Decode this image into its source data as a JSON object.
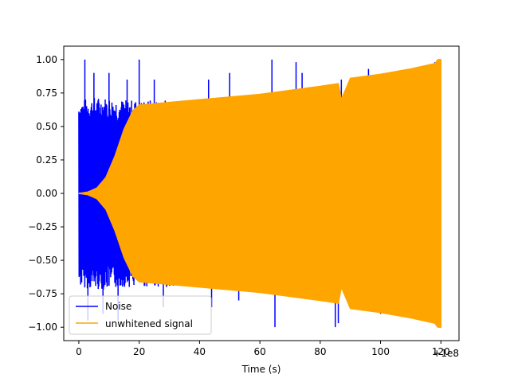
{
  "chart_data": {
    "type": "line",
    "title": "",
    "xlabel": "Time (s)",
    "ylabel": "",
    "x_offset_label": "+1e8",
    "xlim": [
      -5,
      126
    ],
    "ylim": [
      -1.1,
      1.1
    ],
    "x_ticks": [
      0,
      20,
      40,
      60,
      80,
      100,
      120
    ],
    "x_tick_labels": [
      "0",
      "20",
      "40",
      "60",
      "80",
      "100",
      "120"
    ],
    "y_ticks": [
      -1.0,
      -0.75,
      -0.5,
      -0.25,
      0.0,
      0.25,
      0.5,
      0.75,
      1.0
    ],
    "y_tick_labels": [
      "−1.00",
      "−0.75",
      "−0.50",
      "−0.25",
      "0.00",
      "0.25",
      "0.50",
      "0.75",
      "1.00"
    ],
    "grid": false,
    "legend_position": "lower-left",
    "series": [
      {
        "name": "Noise",
        "color": "#0000ff",
        "envelope_x": [
          0,
          5,
          10,
          15,
          20,
          30,
          40,
          60,
          80,
          100,
          120
        ],
        "envelope_upper": [
          0.7,
          0.72,
          0.72,
          0.7,
          0.7,
          0.7,
          0.7,
          0.72,
          0.74,
          0.77,
          0.8
        ],
        "spikes": [
          [
            2,
            1.0
          ],
          [
            3,
            -0.95
          ],
          [
            5,
            0.9
          ],
          [
            8,
            -0.9
          ],
          [
            10,
            0.9
          ],
          [
            13,
            -0.95
          ],
          [
            16,
            0.85
          ],
          [
            20,
            1.0
          ],
          [
            25,
            0.85
          ],
          [
            28,
            -0.85
          ],
          [
            43,
            0.85
          ],
          [
            44,
            -0.85
          ],
          [
            50,
            0.9
          ],
          [
            53,
            -0.8
          ],
          [
            64,
            1.0
          ],
          [
            65,
            -1.0
          ],
          [
            72,
            0.98
          ],
          [
            74,
            0.9
          ],
          [
            85,
            -1.0
          ],
          [
            86,
            -0.97
          ],
          [
            87,
            0.85
          ],
          [
            96,
            0.93
          ],
          [
            100,
            -0.9
          ],
          [
            113,
            0.9
          ],
          [
            118,
            0.98
          ]
        ]
      },
      {
        "name": "unwhitened signal",
        "color": "#ffa500",
        "envelope_x": [
          0,
          3,
          6,
          9,
          12,
          15,
          18,
          20,
          30,
          40,
          50,
          60,
          70,
          80,
          86,
          87,
          90,
          100,
          110,
          118,
          119,
          120
        ],
        "envelope_upper": [
          0.0,
          0.01,
          0.04,
          0.12,
          0.28,
          0.48,
          0.62,
          0.66,
          0.68,
          0.7,
          0.72,
          0.74,
          0.77,
          0.8,
          0.82,
          0.7,
          0.86,
          0.89,
          0.93,
          0.97,
          1.0,
          1.0
        ]
      }
    ]
  }
}
